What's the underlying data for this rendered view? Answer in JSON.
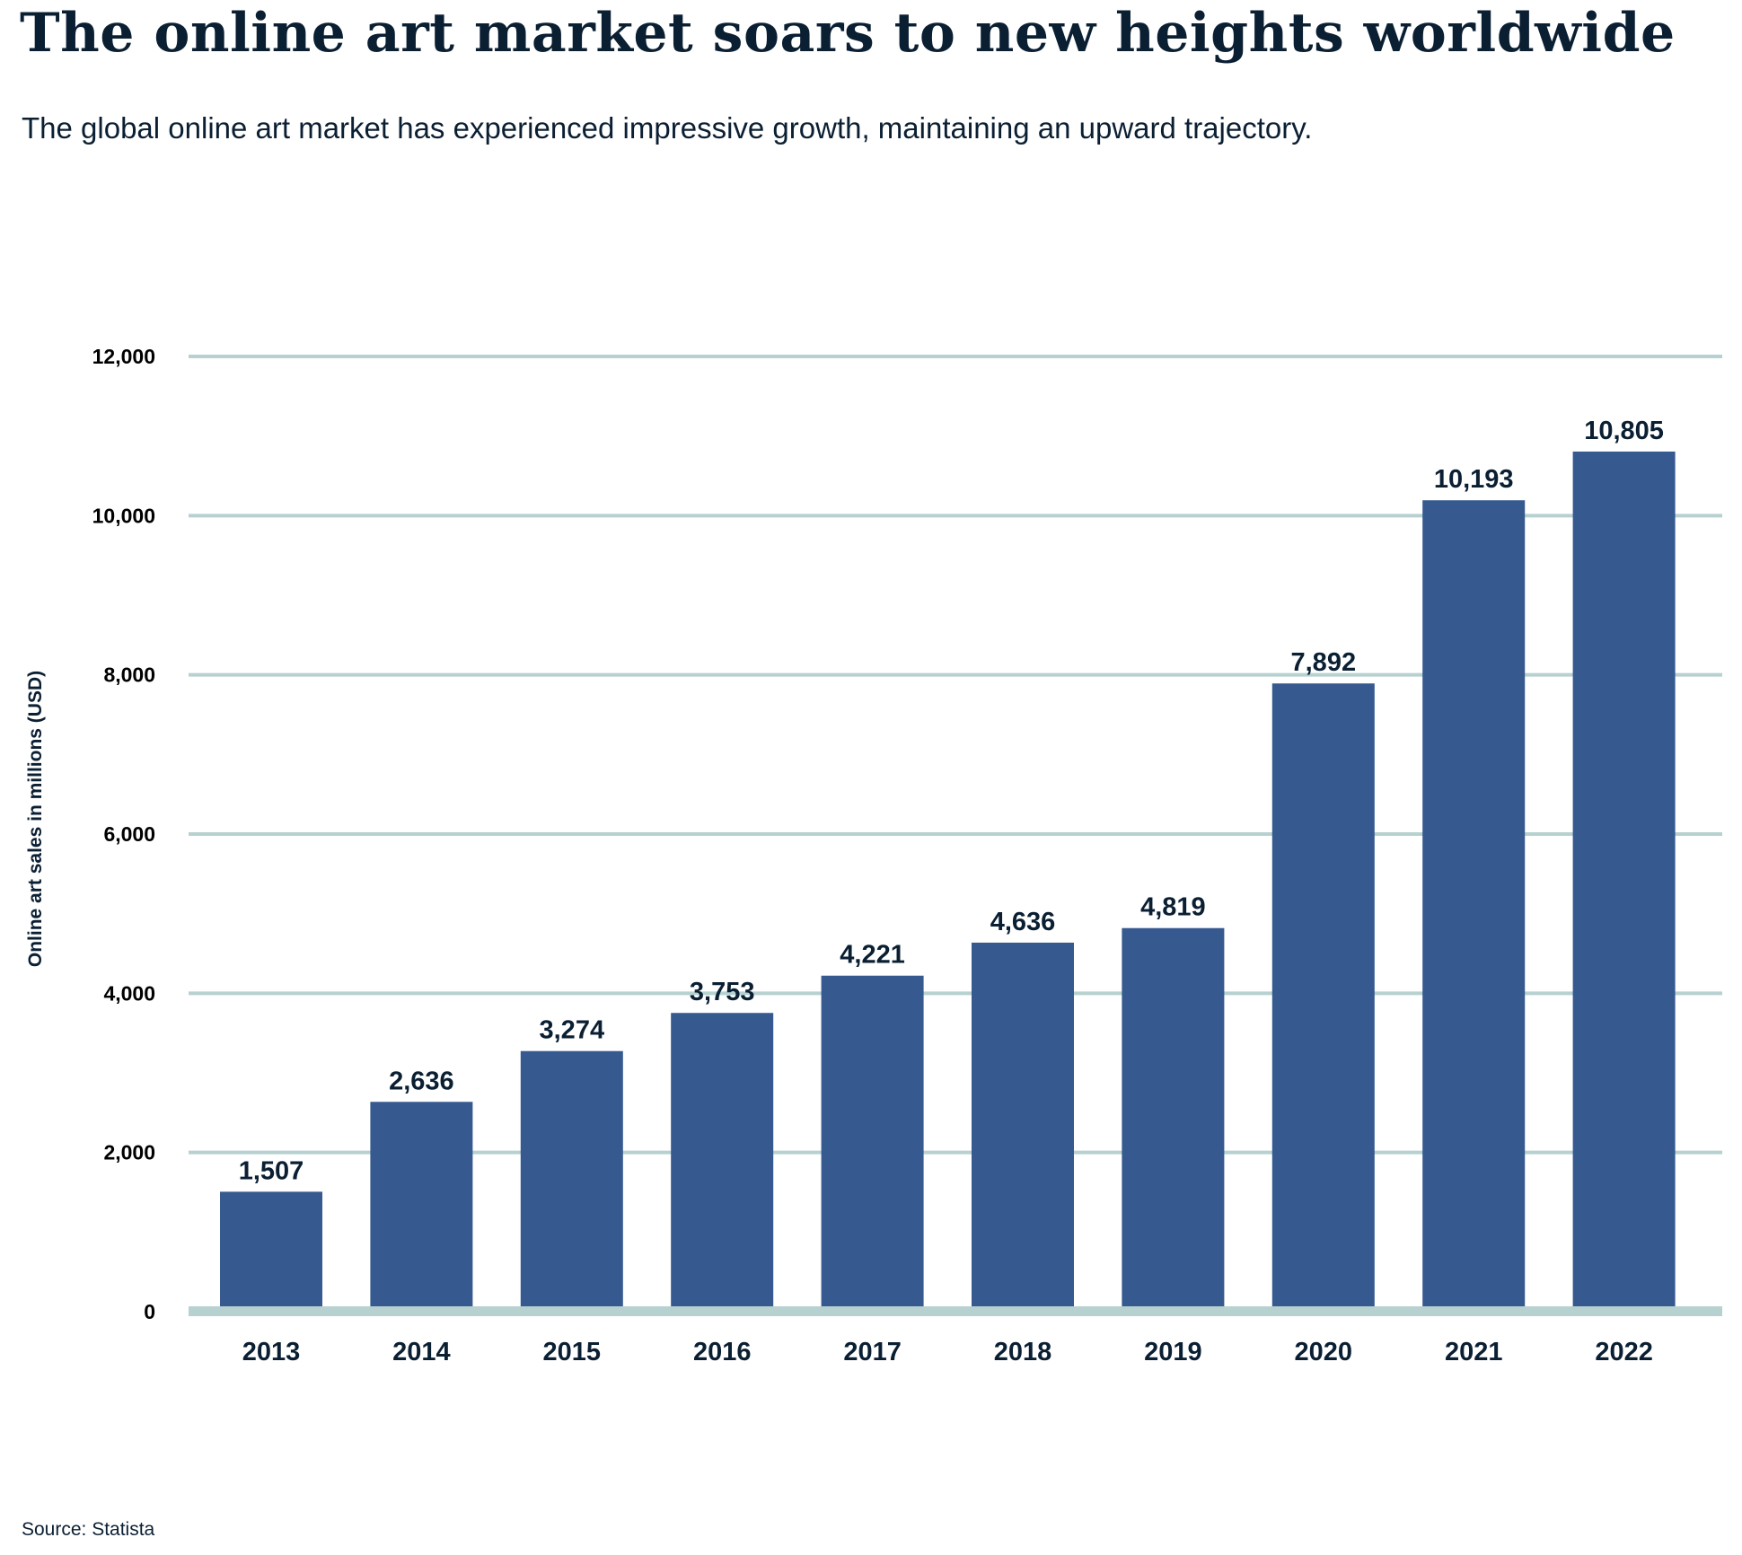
{
  "title": "The online art market soars to new heights worldwide",
  "subtitle": "The global online art market has experienced impressive growth, maintaining an upward trajectory.",
  "source": "Source: Statista",
  "colors": {
    "bar": "#36598f",
    "grid": "#b7d1d1",
    "text": "#0b1f33"
  },
  "chart_data": {
    "type": "bar",
    "categories": [
      "2013",
      "2014",
      "2015",
      "2016",
      "2017",
      "2018",
      "2019",
      "2020",
      "2021",
      "2022"
    ],
    "values": [
      1507,
      2636,
      3274,
      3753,
      4221,
      4636,
      4819,
      7892,
      10193,
      10805
    ],
    "data_labels": [
      "1,507",
      "2,636",
      "3,274",
      "3,753",
      "4,221",
      "4,636",
      "4,819",
      "7,892",
      "10,193",
      "10,805"
    ],
    "xlabel": "",
    "ylabel": "Online art sales in millions (USD)",
    "ylim": [
      0,
      12000
    ],
    "yticks": [
      0,
      2000,
      4000,
      6000,
      8000,
      10000,
      12000
    ],
    "ytick_labels": [
      "0",
      "2,000",
      "4,000",
      "6,000",
      "8,000",
      "10,000",
      "12,000"
    ],
    "grid": true,
    "legend": "none"
  }
}
